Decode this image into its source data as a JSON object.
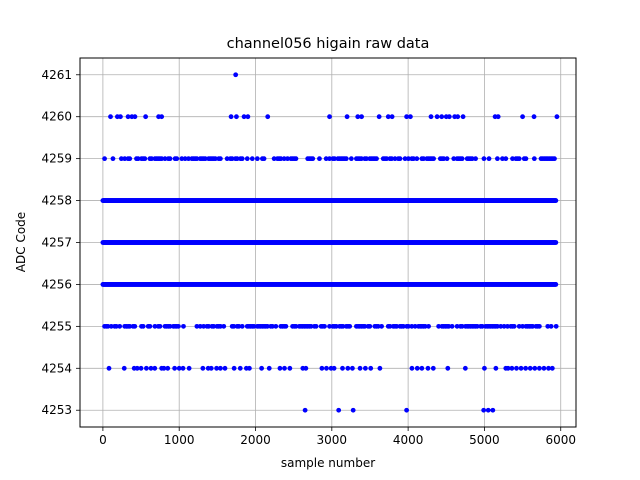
{
  "chart_data": {
    "type": "scatter",
    "title": "channel056 higain raw data",
    "xlabel": "sample number",
    "ylabel": "ADC Code",
    "xlim": [
      -300,
      6200
    ],
    "ylim": [
      4252.6,
      4261.4
    ],
    "xticks": [
      0,
      1000,
      2000,
      3000,
      4000,
      5000,
      6000
    ],
    "yticks": [
      4253,
      4254,
      4255,
      4256,
      4257,
      4258,
      4259,
      4260,
      4261
    ],
    "grid": true,
    "marker_color": "#0000ff",
    "series": [
      {
        "x_range": [
          0,
          5940
        ],
        "levels": [
          {
            "y": 4261,
            "x": [
              1740
            ]
          },
          {
            "y": 4260,
            "x": [
              100,
              190,
              230,
              330,
              380,
              420,
              560,
              730,
              770,
              1680,
              1750,
              1850,
              1900,
              2160,
              2970,
              3200,
              3340,
              3390,
              3620,
              3740,
              3790,
              3980,
              4030,
              4300,
              4380,
              4440,
              4500,
              4540,
              4610,
              4650,
              4720,
              5140,
              5180,
              5500,
              5650,
              5950
            ]
          },
          {
            "y": 4253,
            "x": [
              2650,
              3090,
              3280,
              3980,
              4990,
              5050,
              5110
            ]
          },
          {
            "y": 4254,
            "x": [
              80,
              280,
              410,
              450,
              500,
              570,
              630,
              680,
              770,
              800,
              850,
              940,
              1000,
              1050,
              1130,
              1310,
              1380,
              1420,
              1490,
              1540,
              1600,
              1720,
              1800,
              1880,
              1920,
              2080,
              2180,
              2320,
              2380,
              2450,
              2620,
              2660,
              2870,
              2930,
              2990,
              3030,
              3140,
              3210,
              3270,
              3370,
              3440,
              3510,
              3630,
              4050,
              4120,
              4180,
              4260,
              4330,
              4520,
              4750,
              5000,
              5150,
              5280,
              5310,
              5360,
              5420,
              5480,
              5540,
              5600,
              5660,
              5720,
              5780,
              5840,
              5890
            ]
          }
        ],
        "dense_levels": [
          {
            "y": 4259,
            "step": 22,
            "fill_ratio": 0.55
          },
          {
            "y": 4258,
            "step": 8,
            "fill_ratio": 1.0
          },
          {
            "y": 4257,
            "step": 8,
            "fill_ratio": 1.0
          },
          {
            "y": 4256,
            "step": 8,
            "fill_ratio": 1.0
          },
          {
            "y": 4255,
            "step": 22,
            "fill_ratio": 0.6
          }
        ]
      }
    ]
  }
}
